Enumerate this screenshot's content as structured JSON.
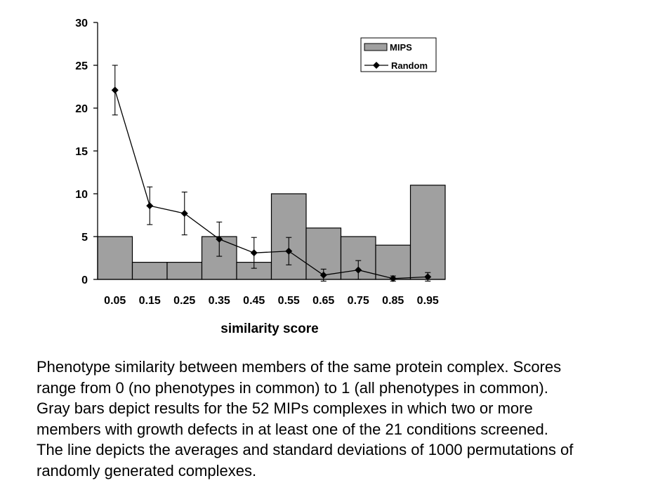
{
  "chart_data": {
    "type": "bar",
    "categories": [
      "0.05",
      "0.15",
      "0.25",
      "0.35",
      "0.45",
      "0.55",
      "0.65",
      "0.75",
      "0.85",
      "0.95"
    ],
    "series": [
      {
        "name": "MIPS",
        "kind": "bar",
        "color": "#a0a0a0",
        "values": [
          5,
          2,
          2,
          5,
          2,
          10,
          6,
          5,
          4,
          11
        ]
      },
      {
        "name": "Random",
        "kind": "line",
        "color": "#000000",
        "marker": "diamond",
        "values": [
          22.1,
          8.6,
          7.7,
          4.7,
          3.1,
          3.3,
          0.5,
          1.1,
          0.1,
          0.3
        ],
        "error": [
          2.9,
          2.2,
          2.5,
          2.0,
          1.8,
          1.6,
          0.7,
          1.1,
          0.3,
          0.5
        ]
      }
    ],
    "xlabel": "similarity score",
    "ylabel": "",
    "ylim": [
      0,
      30
    ],
    "yticks": [
      0,
      5,
      10,
      15,
      20,
      25,
      30
    ],
    "grid": false,
    "legend_position": "top-right"
  },
  "caption": {
    "lines": [
      "Phenotype similarity between members of the same protein complex.  Scores",
      "range from 0 (no phenotypes in common) to 1 (all phenotypes in common).",
      "Gray bars depict results for the 52 MIPs complexes in which two or more",
      "members with growth defects in at least one of the 21 conditions screened.",
      "The line depicts the averages and standard deviations of 1000 permutations of",
      "randomly generated complexes."
    ]
  }
}
